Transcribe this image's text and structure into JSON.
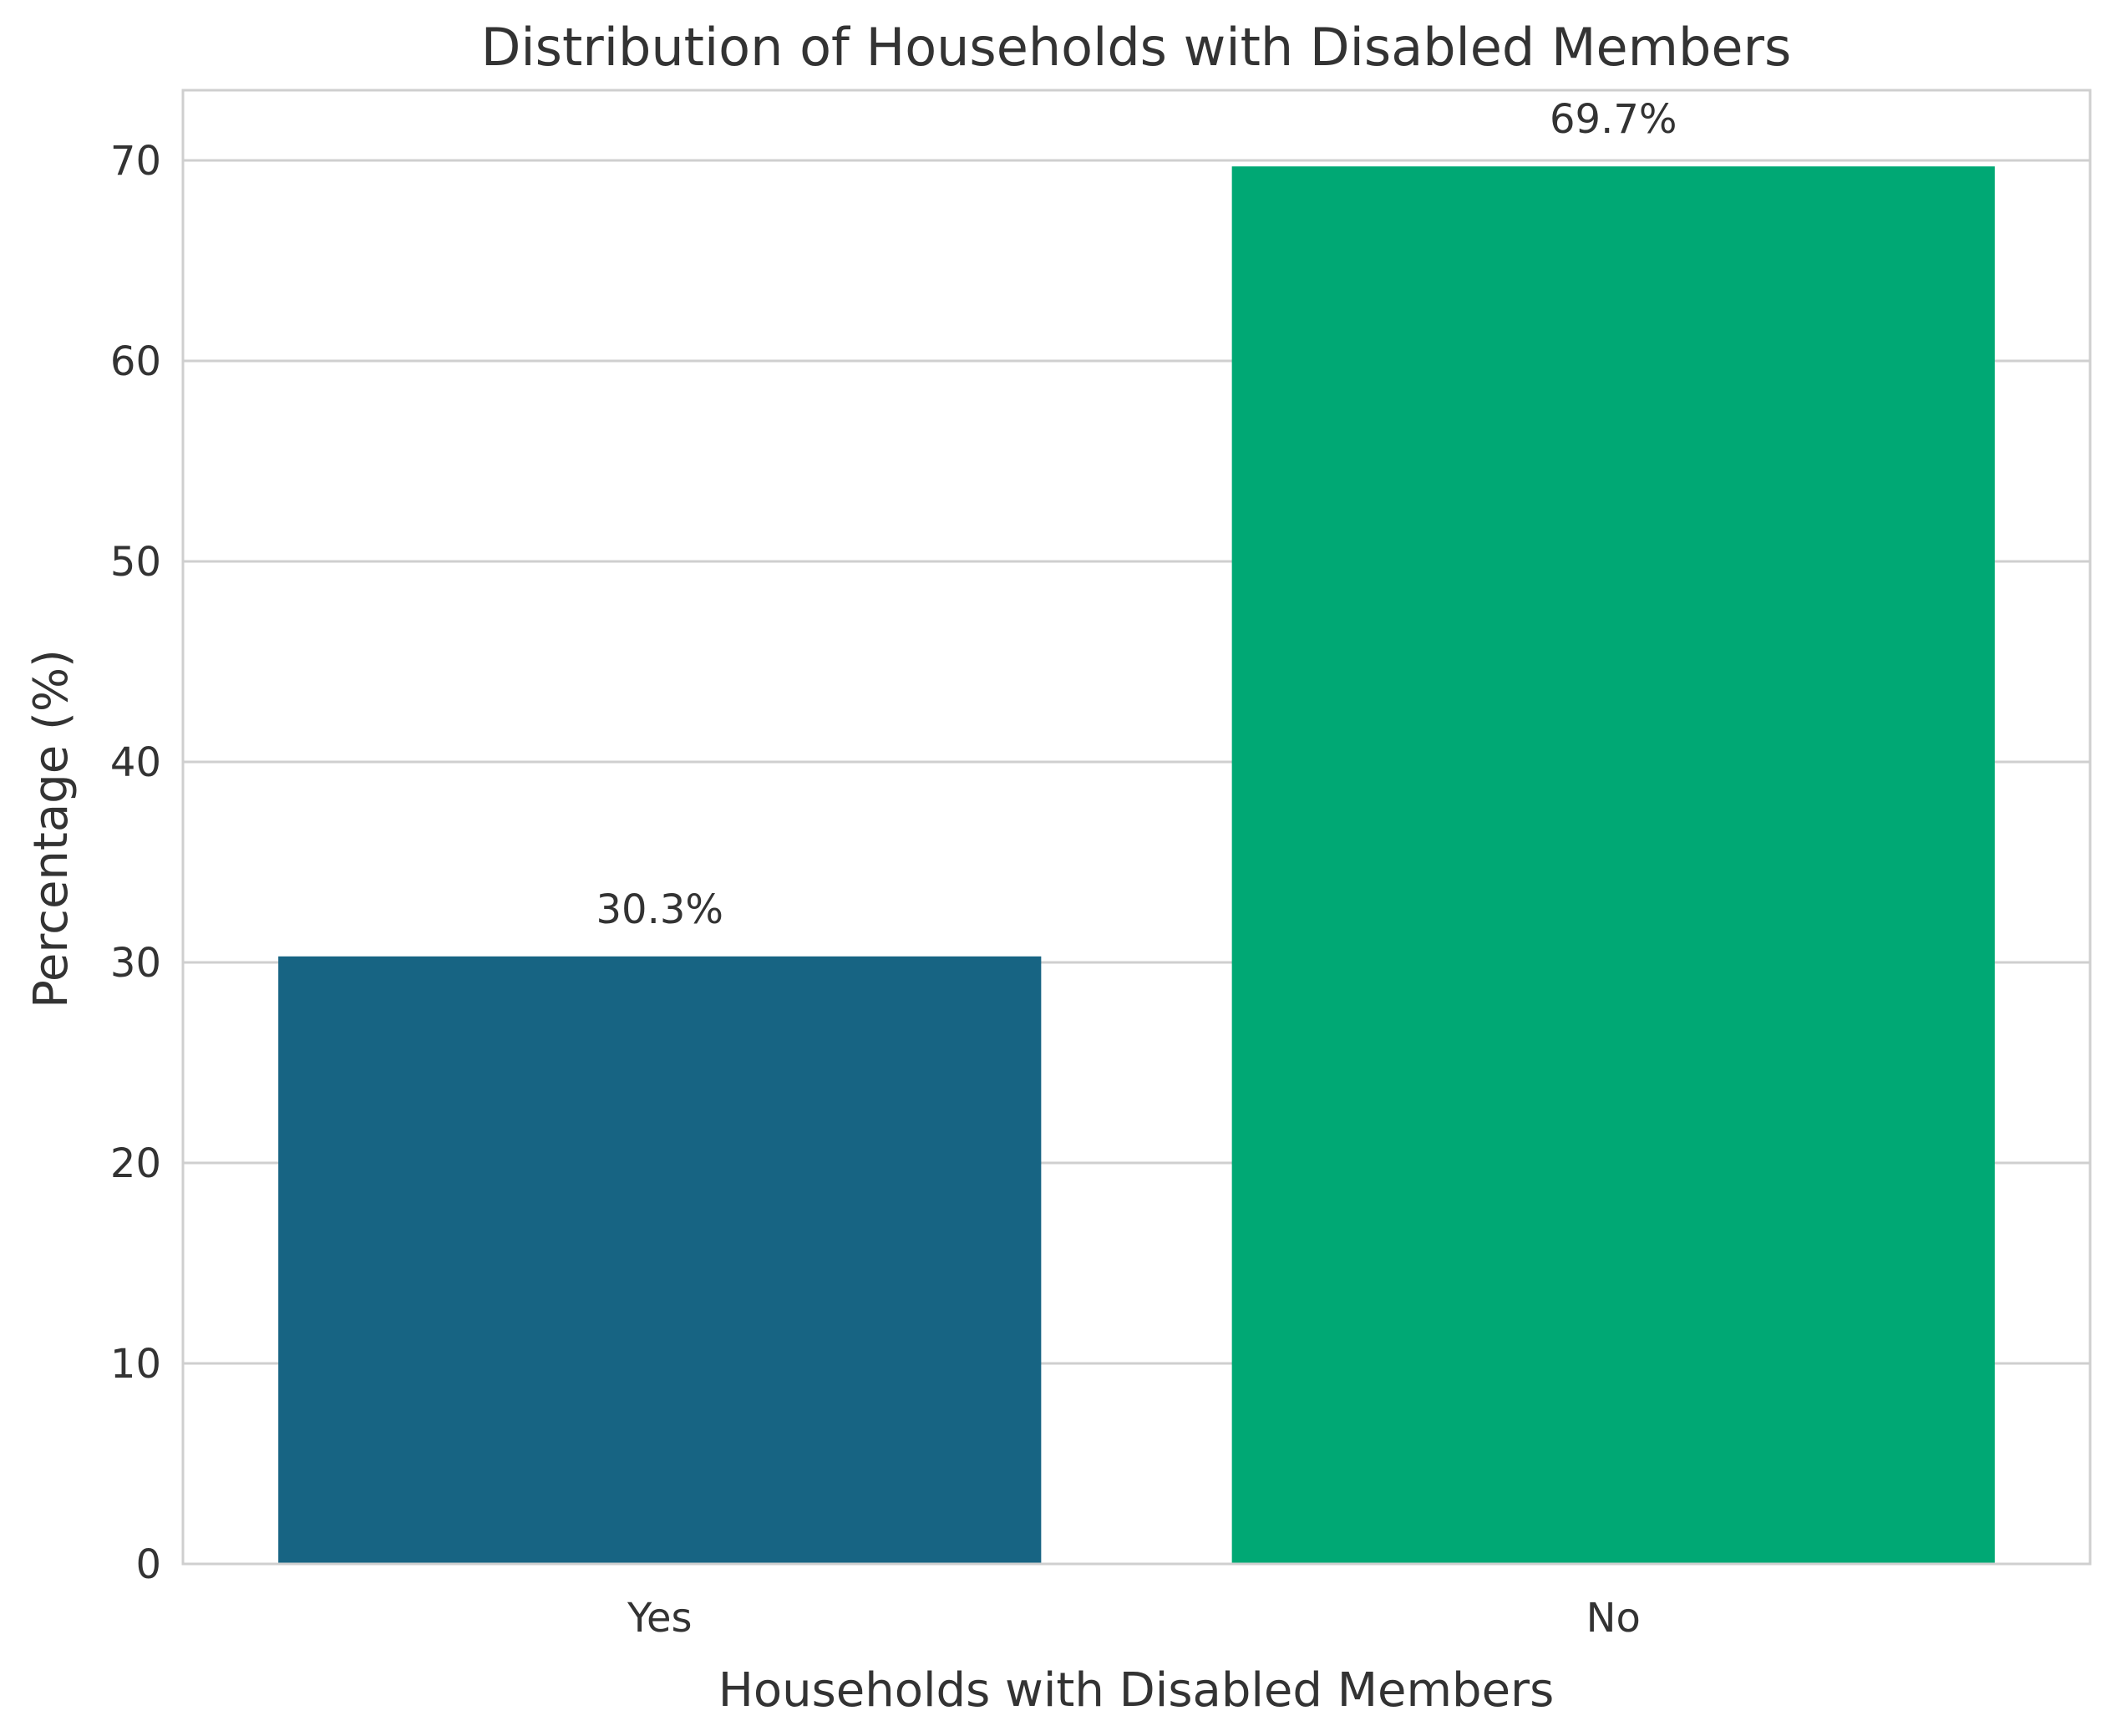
{
  "chart_data": {
    "type": "bar",
    "title": "Distribution of Households with Disabled Members",
    "xlabel": "Households with Disabled Members",
    "ylabel": "Percentage (%)",
    "categories": [
      "Yes",
      "No"
    ],
    "values": [
      30.3,
      69.7
    ],
    "value_labels": [
      "30.3%",
      "69.7%"
    ],
    "colors": [
      "#176483",
      "#00a874"
    ],
    "ylim": [
      0,
      73.5
    ],
    "yticks": [
      0,
      10,
      20,
      30,
      40,
      50,
      60,
      70
    ],
    "grid": true
  }
}
